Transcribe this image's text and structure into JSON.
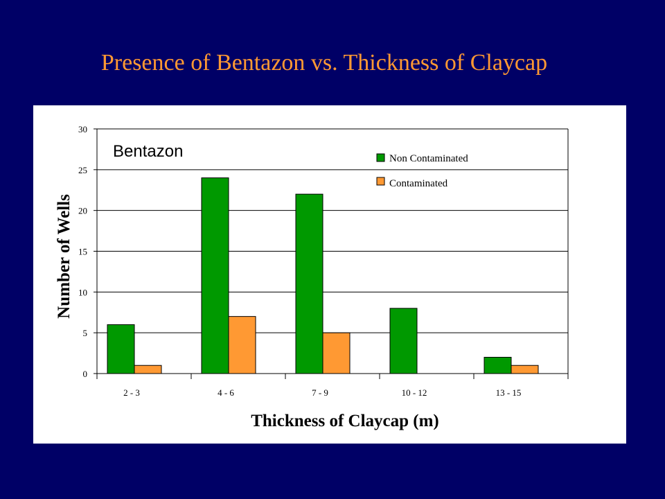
{
  "slide": {
    "title": "Presence of Bentazon vs. Thickness of Claycap"
  },
  "chart_data": {
    "type": "bar",
    "categories": [
      "2 - 3",
      "4 - 6",
      "7 - 9",
      "10 - 12",
      "13 - 15"
    ],
    "series": [
      {
        "name": "Non Contaminated",
        "values": [
          6,
          24,
          22,
          8,
          2
        ],
        "color": "#009900"
      },
      {
        "name": "Contaminated",
        "values": [
          1,
          7,
          5,
          0,
          1
        ],
        "color": "#ff9933"
      }
    ],
    "annotation": "Bentazon",
    "xlabel": "Thickness of Claycap (m)",
    "ylabel": "Number of Wells",
    "ylim": [
      0,
      30
    ],
    "yticks": [
      0,
      5,
      10,
      15,
      20,
      25,
      30
    ],
    "grid": true,
    "legend_position": "top-right"
  }
}
